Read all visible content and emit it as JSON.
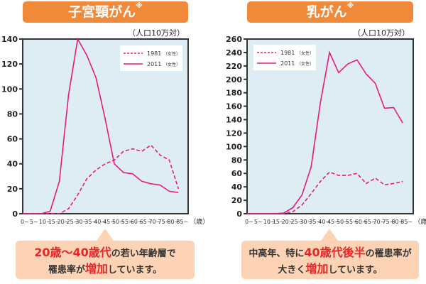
{
  "colors": {
    "title_bg": "#f08a3a",
    "line": "#e8197d",
    "plot_bg": "#deedf4",
    "callout_bg": "#fcd3b4",
    "highlight": "#e8262a"
  },
  "chart_data": [
    {
      "type": "line",
      "title": "子宮頸がん",
      "title_mark": "※",
      "unit_label": "（人口10万対）",
      "x_unit": "（歳）",
      "categories": [
        "0~",
        "5~",
        "10~",
        "15~",
        "20~",
        "25~",
        "30~",
        "35~",
        "40~",
        "45~",
        "50~",
        "55~",
        "60~",
        "65~",
        "70~",
        "75~",
        "80~",
        "85~"
      ],
      "ylim": [
        0,
        140
      ],
      "yticks": [
        0,
        20,
        40,
        60,
        80,
        100,
        120,
        140
      ],
      "legend_position": "top-right",
      "series": [
        {
          "name": "1981",
          "note": "（女性）",
          "style": "dashed",
          "values": [
            0,
            0,
            0,
            0,
            0,
            4,
            15,
            28,
            35,
            40,
            43,
            50,
            52,
            50,
            55,
            47,
            43,
            20
          ]
        },
        {
          "name": "2011",
          "note": "（女性）",
          "style": "solid",
          "values": [
            0,
            0,
            0,
            2,
            26,
            95,
            140,
            127,
            109,
            76,
            40,
            33,
            32,
            26,
            24,
            23,
            18,
            17
          ]
        }
      ],
      "callout": {
        "line1_hl": "20歳〜40歳代",
        "line1_rest": "の若い年齢層で",
        "line2_pre": "罹患率が",
        "line2_hl": "増加",
        "line2_post": "しています。"
      }
    },
    {
      "type": "line",
      "title": "乳がん",
      "title_mark": "※",
      "unit_label": "（人口10万対）",
      "x_unit": "（歳）",
      "categories": [
        "0~",
        "5~",
        "10~",
        "15~",
        "20~",
        "25~",
        "30~",
        "35~",
        "40~",
        "45~",
        "50~",
        "55~",
        "60~",
        "65~",
        "70~",
        "75~",
        "80~",
        "85~"
      ],
      "ylim": [
        0,
        260
      ],
      "yticks": [
        0,
        20,
        40,
        60,
        80,
        100,
        120,
        140,
        160,
        180,
        200,
        220,
        240,
        260
      ],
      "legend_position": "top-left",
      "series": [
        {
          "name": "1981",
          "note": "（女性）",
          "style": "dashed",
          "values": [
            0,
            0,
            0,
            0,
            0,
            3,
            13,
            30,
            48,
            62,
            57,
            57,
            60,
            45,
            53,
            43,
            45,
            48
          ]
        },
        {
          "name": "2011",
          "note": "（女性）",
          "style": "solid",
          "values": [
            0,
            0,
            0,
            0,
            1,
            9,
            28,
            70,
            165,
            240,
            210,
            223,
            229,
            208,
            194,
            157,
            158,
            135
          ]
        }
      ],
      "callout": {
        "line1_pre": "中高年、特に",
        "line1_hl": "40歳代後半",
        "line1_rest": "の罹患率が",
        "line2_pre": "大きく",
        "line2_hl": "増加",
        "line2_post": "しています。"
      }
    }
  ]
}
